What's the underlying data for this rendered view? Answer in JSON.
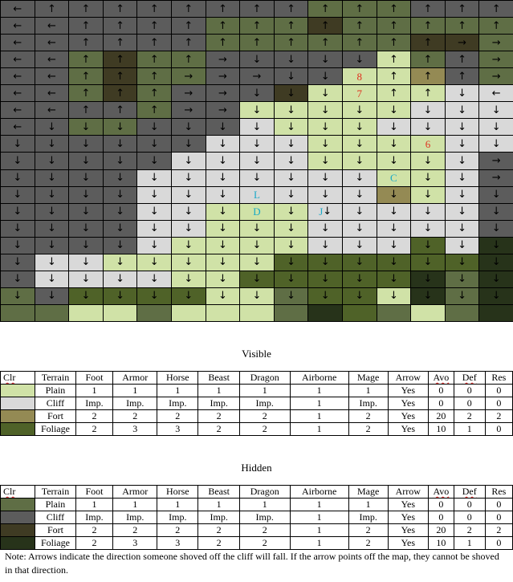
{
  "legend_map": {
    "P": "#d0e2a7",
    "C": "#d9d9d9",
    "F": "#948a54",
    "G": "#4f6228",
    "p": "#5f6e45",
    "c": "#5c5c5c",
    "f": "#3f3b23",
    "g": "#27331a"
  },
  "map": {
    "cols": 15,
    "rows": 19,
    "terrain": [
      "cccccccccpppccc",
      "ccccccpppfppppp",
      "ccccccppppppffp",
      "ccpfppcccccPpcp",
      "ccpfppccccPPFcp",
      "ccpfpcccfPPPPCC",
      "ccccpccPPPPPCCC",
      "ccppcccCPPPCCCC",
      "ccccccCCCPPPPCC",
      "cccccCCCCPPPPCc",
      "ccccCCCCCCCPPCc",
      "ccccCCCCCCCFPCc",
      "ccccCCPPPCCCCCc",
      "ccccCCPPPCCCCCc",
      "ccccCPPPPCCCGCg",
      "cCCPPPPPGGGGGGg",
      "cCCCCPPGGGGGgpg",
      "pcGGGGPPpGGPgpg",
      "ppPPpPPPpgGpPpg"
    ],
    "arrows": [
      "←↑↑↑↑↑↑↑↑↑↑↑↑↑↑",
      "←←↑↑↑↑↑↑↑↑↑↑↑↑↑",
      "←←↑↑↑↑↑↑↑↑↑↑↑→→",
      "←←↑↑↑↑→↓↓↓↓↑↑↑→",
      "←←↑↑↑→→→↓↓8↑↑↑→",
      "←←↑↑↑→→↓↓↓7↑↑↓←",
      "←←↑↑↑→→↓↓↓↓↓↓↓↓",
      "←↓↓↓↓↓↓↓↓↓↓↓↓↓↓",
      "↓↓↓↓↓↓↓↓↓↓↓↓6↓↓",
      "↓↓↓↓↓↓↓↓↓↓↓↓↓↓→",
      "↓↓↓↓↓↓↓↓↓↓↓C↓↓→",
      "↓↓↓↓↓↓↓L↓↓↓↓↓↓↓",
      "↓↓↓↓↓↓↓D↓J↓↓↓↓↓",
      "↓↓↓↓↓↓↓↓↓↓↓↓↓↓↓",
      "↓↓↓↓↓↓↓↓↓↓↓↓↓↓↓",
      "↓↓↓↓↓↓↓↓↓↓↓↓↓↓↓",
      "↓↓↓↓↓↓↓↓↓↓↓↓↓↓↓",
      "↓↓↓↓↓↓↓↓↓↓↓↓↓↓↓",
      "               "
    ]
  },
  "visible_title": "Visible",
  "hidden_title": "Hidden",
  "table_header": [
    "Clr",
    "Terrain",
    "Foot",
    "Armor",
    "Horse",
    "Beast",
    "Dragon",
    "Airborne",
    "Mage",
    "Arrow",
    "Avo",
    "Def",
    "Res"
  ],
  "visible_rows": [
    {
      "color": "#d0e2a7",
      "cells": [
        "Plain",
        "1",
        "1",
        "1",
        "1",
        "1",
        "1",
        "1",
        "Yes",
        "0",
        "0",
        "0"
      ]
    },
    {
      "color": "#d9d9d9",
      "cells": [
        "Cliff",
        "Imp.",
        "Imp.",
        "Imp.",
        "Imp.",
        "Imp.",
        "1",
        "Imp.",
        "Yes",
        "0",
        "0",
        "0"
      ]
    },
    {
      "color": "#948a54",
      "cells": [
        "Fort",
        "2",
        "2",
        "2",
        "2",
        "2",
        "1",
        "2",
        "Yes",
        "20",
        "2",
        "2"
      ]
    },
    {
      "color": "#4f6228",
      "cells": [
        "Foliage",
        "2",
        "3",
        "3",
        "2",
        "2",
        "1",
        "2",
        "Yes",
        "10",
        "1",
        "0"
      ]
    }
  ],
  "hidden_rows": [
    {
      "color": "#5f6e45",
      "cells": [
        "Plain",
        "1",
        "1",
        "1",
        "1",
        "1",
        "1",
        "1",
        "Yes",
        "0",
        "0",
        "0"
      ]
    },
    {
      "color": "#5c5c5c",
      "cells": [
        "Cliff",
        "Imp.",
        "Imp.",
        "Imp.",
        "Imp.",
        "Imp.",
        "1",
        "Imp.",
        "Yes",
        "0",
        "0",
        "0"
      ]
    },
    {
      "color": "#3f3b23",
      "cells": [
        "Fort",
        "2",
        "2",
        "2",
        "2",
        "2",
        "1",
        "2",
        "Yes",
        "20",
        "2",
        "2"
      ]
    },
    {
      "color": "#27331a",
      "cells": [
        "Foliage",
        "2",
        "3",
        "3",
        "2",
        "2",
        "1",
        "2",
        "Yes",
        "10",
        "1",
        "0"
      ]
    }
  ],
  "note": "Note: Arrows indicate the direction someone shoved off the cliff will fall. If the arrow points off the map, they cannot be shoved in that direction."
}
